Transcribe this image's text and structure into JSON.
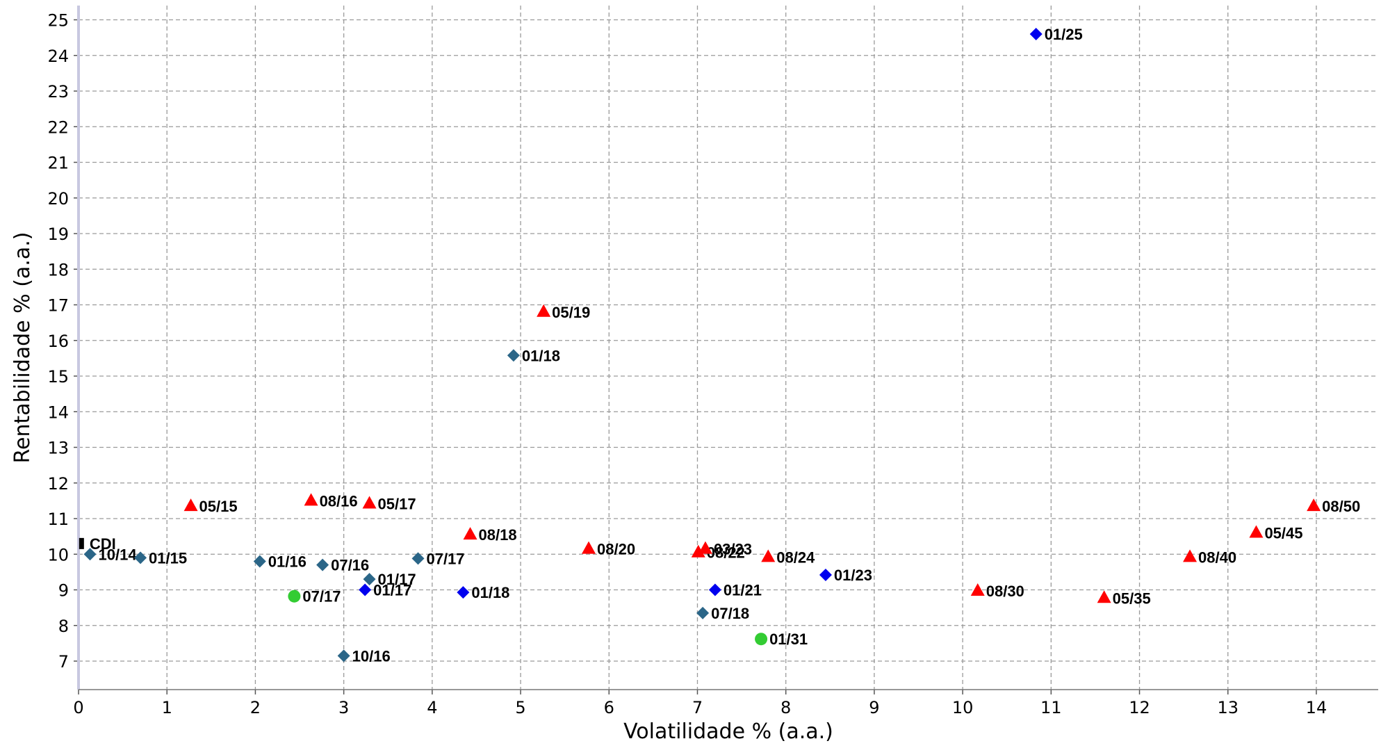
{
  "chart_data": {
    "type": "scatter",
    "xlabel": "Volatilidade % (a.a.)",
    "ylabel": "Rentabilidade % (a.a.)",
    "xlim": [
      0,
      14.7
    ],
    "ylim": [
      6.2,
      25.4
    ],
    "xticks": [
      0,
      1,
      2,
      3,
      4,
      5,
      6,
      7,
      8,
      9,
      10,
      11,
      12,
      13,
      14
    ],
    "yticks": [
      7,
      8,
      9,
      10,
      11,
      12,
      13,
      14,
      15,
      16,
      17,
      18,
      19,
      20,
      21,
      22,
      23,
      24,
      25
    ],
    "grid": true,
    "series": [
      {
        "marker": "square",
        "color": "#000000",
        "points": [
          {
            "label": "CDI",
            "x": 0.03,
            "y": 10.3
          }
        ]
      },
      {
        "marker": "diamond",
        "color": "#2b6688",
        "points": [
          {
            "label": "10/14",
            "x": 0.13,
            "y": 10.0
          },
          {
            "label": "01/15",
            "x": 0.7,
            "y": 9.9
          },
          {
            "label": "01/16",
            "x": 2.05,
            "y": 9.8
          },
          {
            "label": "07/16",
            "x": 2.76,
            "y": 9.7
          },
          {
            "label": "01/17",
            "x": 3.29,
            "y": 9.3
          },
          {
            "label": "10/16",
            "x": 3.0,
            "y": 7.15
          },
          {
            "label": "07/17",
            "x": 3.84,
            "y": 9.88
          },
          {
            "label": "01/18",
            "x": 4.92,
            "y": 15.58
          },
          {
            "label": "07/18",
            "x": 7.06,
            "y": 8.35
          }
        ]
      },
      {
        "marker": "diamond",
        "color": "#0000ee",
        "points": [
          {
            "label": "01/17",
            "x": 3.24,
            "y": 9.0
          },
          {
            "label": "01/18",
            "x": 4.35,
            "y": 8.93
          },
          {
            "label": "01/21",
            "x": 7.2,
            "y": 9.0
          },
          {
            "label": "01/23",
            "x": 8.45,
            "y": 9.42
          },
          {
            "label": "01/25",
            "x": 10.83,
            "y": 24.6
          }
        ]
      },
      {
        "marker": "triangle",
        "color": "#ff0000",
        "points": [
          {
            "label": "05/15",
            "x": 1.27,
            "y": 11.35
          },
          {
            "label": "08/16",
            "x": 2.63,
            "y": 11.5
          },
          {
            "label": "05/17",
            "x": 3.29,
            "y": 11.42
          },
          {
            "label": "08/18",
            "x": 4.43,
            "y": 10.55
          },
          {
            "label": "05/19",
            "x": 5.26,
            "y": 16.8
          },
          {
            "label": "08/20",
            "x": 5.77,
            "y": 10.15
          },
          {
            "label": "08/22",
            "x": 7.01,
            "y": 10.05
          },
          {
            "label": "03/23",
            "x": 7.09,
            "y": 10.15
          },
          {
            "label": "08/24",
            "x": 7.8,
            "y": 9.92
          },
          {
            "label": "08/30",
            "x": 10.17,
            "y": 8.97
          },
          {
            "label": "05/35",
            "x": 11.6,
            "y": 8.77
          },
          {
            "label": "08/40",
            "x": 12.57,
            "y": 9.92
          },
          {
            "label": "05/45",
            "x": 13.32,
            "y": 10.6
          },
          {
            "label": "08/50",
            "x": 13.97,
            "y": 11.35
          }
        ]
      },
      {
        "marker": "circle",
        "color": "#33cc33",
        "points": [
          {
            "label": "07/17",
            "x": 2.44,
            "y": 8.82
          },
          {
            "label": "01/31",
            "x": 7.72,
            "y": 7.62
          }
        ]
      }
    ]
  }
}
